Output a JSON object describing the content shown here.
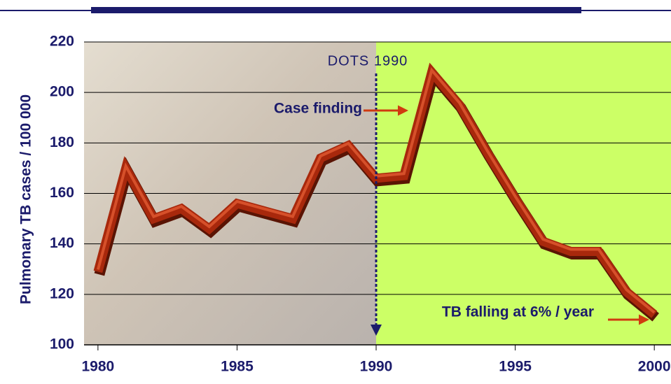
{
  "chart_data": {
    "type": "line",
    "y_label": "Pulmonary TB cases / 100 000",
    "x": [
      1980,
      1981,
      1982,
      1983,
      1984,
      1985,
      1986,
      1987,
      1988,
      1989,
      1990,
      1991,
      1992,
      1993,
      1994,
      1995,
      1996,
      1997,
      1998,
      1999,
      2000
    ],
    "series": [
      {
        "color": "#a8280c",
        "values": [
          129,
          170,
          150,
          154,
          146,
          156,
          153,
          150,
          174,
          179,
          166,
          167,
          208,
          195,
          176,
          158,
          141,
          137,
          137,
          121,
          112
        ]
      }
    ],
    "xlim": [
      1979.5,
      2000.6
    ],
    "xticks": [
      1980,
      1985,
      1990,
      1995,
      2000
    ],
    "ylim": [
      100,
      220
    ],
    "yticks": [
      100,
      120,
      140,
      160,
      180,
      200,
      220
    ],
    "grid": true,
    "dots_year": 1990,
    "annotations": [
      "DOTS 1990",
      "Case finding",
      "TB falling at 6% / year"
    ]
  }
}
